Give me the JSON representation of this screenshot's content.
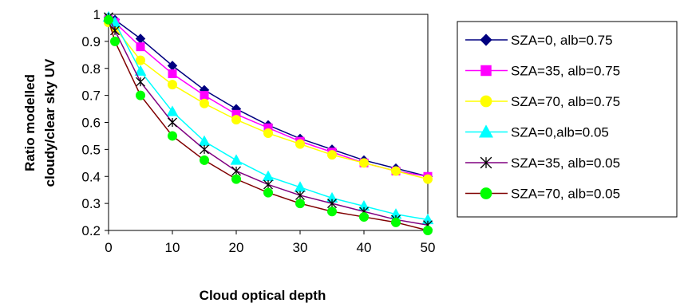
{
  "chart_data": {
    "type": "line",
    "title": "",
    "xlabel": "Cloud optical depth",
    "ylabel_lines": [
      "Ratio modelled",
      "cloudy/clear sky UV"
    ],
    "xlim": [
      0,
      50
    ],
    "ylim": [
      0.2,
      1
    ],
    "xticks": [
      "0",
      "10",
      "20",
      "30",
      "40",
      "50"
    ],
    "yticks": [
      "0.2",
      "0.3",
      "0.4",
      "0.5",
      "0.6",
      "0.7",
      "0.8",
      "0.9",
      "1"
    ],
    "grid": false,
    "legend_position": "right",
    "x": [
      0,
      1,
      5,
      10,
      15,
      20,
      25,
      30,
      35,
      40,
      45,
      50
    ],
    "series": [
      {
        "name": "SZA=0, alb=0.75",
        "color": "#000080",
        "marker": "diamond",
        "values": [
          0.99,
          0.98,
          0.91,
          0.81,
          0.72,
          0.65,
          0.59,
          0.54,
          0.5,
          0.46,
          0.43,
          0.4
        ]
      },
      {
        "name": "SZA=35, alb=0.75",
        "color": "#FF00FF",
        "marker": "square",
        "values": [
          0.98,
          0.97,
          0.88,
          0.78,
          0.7,
          0.63,
          0.58,
          0.53,
          0.49,
          0.45,
          0.42,
          0.4
        ]
      },
      {
        "name": "SZA=70, alb=0.75",
        "color": "#FFFF00",
        "marker": "circle",
        "values": [
          0.97,
          0.95,
          0.83,
          0.74,
          0.67,
          0.61,
          0.56,
          0.52,
          0.48,
          0.45,
          0.42,
          0.39
        ]
      },
      {
        "name": "SZA=0,alb=0.05",
        "color": "#00FFFF",
        "marker": "triangle",
        "values": [
          0.99,
          0.97,
          0.79,
          0.64,
          0.53,
          0.46,
          0.4,
          0.36,
          0.32,
          0.29,
          0.26,
          0.24
        ]
      },
      {
        "name": "SZA=35, alb=0.05",
        "color": "#800080",
        "marker": "star",
        "values": [
          0.99,
          0.94,
          0.75,
          0.6,
          0.5,
          0.42,
          0.37,
          0.33,
          0.3,
          0.27,
          0.24,
          0.22
        ]
      },
      {
        "name": "SZA=70, alb=0.05",
        "color": "#00FF00",
        "line_color": "#800000",
        "marker": "circle",
        "values": [
          0.98,
          0.9,
          0.7,
          0.55,
          0.46,
          0.39,
          0.34,
          0.3,
          0.27,
          0.25,
          0.23,
          0.2
        ]
      }
    ]
  }
}
